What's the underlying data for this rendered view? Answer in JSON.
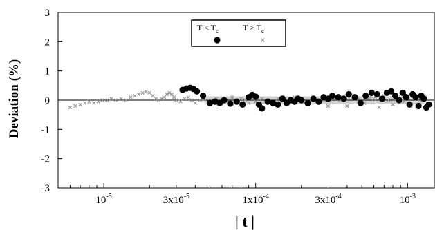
{
  "chart_data": {
    "type": "scatter",
    "title": "",
    "xlabel": "| t |",
    "ylabel": "Deviation  (%)",
    "x_scale": "log",
    "xlim": [
      5e-06,
      0.0015
    ],
    "ylim": [
      -3,
      3
    ],
    "grid": false,
    "x_ticks": [
      {
        "value": 1e-05,
        "base": "10",
        "exp": "-5"
      },
      {
        "value": 3e-05,
        "base": "3x10",
        "exp": "-5"
      },
      {
        "value": 0.0001,
        "base": "1x10",
        "exp": "-4"
      },
      {
        "value": 0.0003,
        "base": "3x10",
        "exp": "-4"
      },
      {
        "value": 0.001,
        "base": "10",
        "exp": "-3"
      }
    ],
    "y_ticks": [
      "3",
      "2",
      "1",
      "0",
      "-1",
      "-2",
      "-3"
    ],
    "reference_line_y": 0,
    "legend": {
      "placement": "top-center",
      "entries": [
        {
          "main": "T < T",
          "sub": "c",
          "marker": "filled-circle",
          "color": "#000000"
        },
        {
          "main": "T > T",
          "sub": "c",
          "marker": "small-cross",
          "color": "#9a9a9a"
        }
      ]
    },
    "series": [
      {
        "marker": "small-cross",
        "color": "#9a9a9a",
        "x": [
          6e-06,
          6.5e-06,
          7e-06,
          7.5e-06,
          8e-06,
          8.6e-06,
          9.2e-06,
          9.8e-06,
          1.05e-05,
          1.12e-05,
          1.2e-05,
          1.3e-05,
          1.4e-05,
          1.5e-05,
          1.6e-05,
          1.7e-05,
          1.8e-05,
          1.9e-05,
          2e-05,
          2.1e-05,
          2.2e-05,
          2.3e-05,
          2.4e-05,
          2.5e-05,
          2.6e-05,
          2.7e-05,
          2.8e-05,
          2.9e-05,
          3e-05,
          3.2e-05,
          3.4e-05,
          3.6e-05,
          3.8e-05,
          4e-05,
          4.3e-05,
          4.6e-05,
          5e-05,
          5.5e-05,
          6e-05,
          6.5e-05,
          7e-05,
          7.5e-05,
          8e-05,
          8.5e-05,
          9e-05,
          0.0001,
          0.00011,
          0.00012,
          0.00013,
          0.00014,
          0.00015,
          0.00016,
          0.00017,
          0.00018,
          0.0002,
          0.00022,
          0.00024,
          0.00026,
          0.00028,
          0.0003,
          0.00033,
          0.00036,
          0.0004,
          0.00044,
          0.00048,
          0.00052,
          0.00056,
          0.0006,
          0.00065,
          0.0007,
          0.00075,
          0.0008,
          0.00085,
          0.0009,
          0.00095,
          0.001,
          0.00105,
          0.0011,
          0.00115,
          0.0012,
          0.00125,
          0.0013
        ],
        "y": [
          -0.25,
          -0.2,
          -0.15,
          -0.1,
          -0.05,
          -0.1,
          -0.05,
          0.0,
          0.0,
          0.05,
          0.0,
          0.05,
          0.0,
          0.1,
          0.15,
          0.2,
          0.25,
          0.3,
          0.25,
          0.15,
          0.05,
          0.0,
          0.05,
          0.1,
          0.2,
          0.25,
          0.2,
          0.1,
          0.0,
          -0.05,
          0.05,
          0.1,
          0.0,
          -0.1,
          0.0,
          0.05,
          -0.05,
          0.05,
          -0.1,
          0.0,
          0.1,
          -0.05,
          0.05,
          0.0,
          -0.1,
          -0.05,
          0.05,
          0.0,
          -0.15,
          0.05,
          0.0,
          -0.1,
          0.05,
          0.1,
          -0.05,
          0.0,
          0.1,
          -0.1,
          0.0,
          -0.2,
          0.1,
          0.0,
          -0.2,
          0.15,
          0.05,
          -0.1,
          0.1,
          0.05,
          -0.25,
          0.15,
          0.0,
          -0.15,
          0.1,
          0.2,
          -0.05,
          0.1,
          -0.2,
          0.15,
          0.05,
          -0.15,
          0.0,
          0.1
        ]
      },
      {
        "marker": "filled-circle",
        "color": "#000000",
        "x": [
          3.3e-05,
          3.5e-05,
          3.7e-05,
          3.9e-05,
          4.1e-05,
          4.5e-05,
          5e-05,
          5.4e-05,
          5.8e-05,
          6.2e-05,
          6.8e-05,
          7.5e-05,
          8.2e-05,
          9e-05,
          9.5e-05,
          0.0001,
          0.000105,
          0.00011,
          0.00012,
          0.00013,
          0.00014,
          0.00015,
          0.00016,
          0.00017,
          0.00018,
          0.00019,
          0.0002,
          0.00022,
          0.00024,
          0.00026,
          0.00028,
          0.0003,
          0.00032,
          0.00035,
          0.00038,
          0.00041,
          0.00045,
          0.00049,
          0.00053,
          0.00058,
          0.00063,
          0.00068,
          0.00073,
          0.00078,
          0.00083,
          0.00088,
          0.00093,
          0.00098,
          0.00103,
          0.00108,
          0.00113,
          0.00118,
          0.00123,
          0.00128,
          0.00133,
          0.00138
        ],
        "y": [
          0.35,
          0.4,
          0.42,
          0.38,
          0.3,
          0.15,
          -0.1,
          -0.05,
          -0.1,
          0.0,
          -0.12,
          -0.05,
          -0.15,
          0.1,
          0.18,
          0.12,
          -0.15,
          -0.28,
          -0.05,
          -0.1,
          -0.15,
          0.05,
          -0.1,
          0.0,
          -0.05,
          0.05,
          0.0,
          -0.1,
          0.05,
          -0.05,
          0.1,
          0.05,
          0.15,
          0.1,
          0.05,
          0.2,
          0.1,
          -0.1,
          0.15,
          0.25,
          0.2,
          0.05,
          0.25,
          0.3,
          0.15,
          0.0,
          0.25,
          0.1,
          -0.15,
          0.2,
          0.1,
          -0.2,
          0.15,
          0.05,
          -0.25,
          -0.15
        ]
      }
    ]
  }
}
